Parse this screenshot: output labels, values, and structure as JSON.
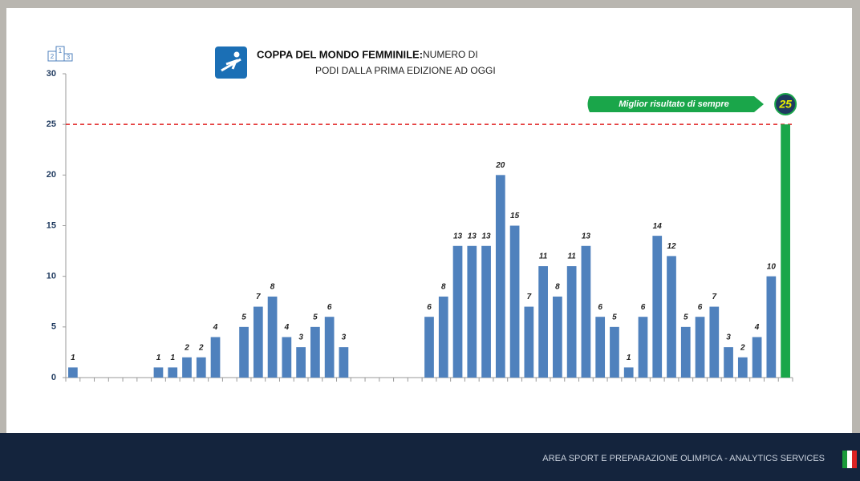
{
  "chart_data": {
    "type": "bar",
    "title": "COPPA DEL MONDO FEMMINILE:",
    "subtitle_line1": "NUMERO DI",
    "subtitle_line2": "PODI DALLA PRIMA EDIZIONE AD OGGI",
    "categories": [
      null,
      null,
      null,
      null,
      null,
      null,
      null,
      null,
      null,
      null,
      null,
      null,
      null,
      null,
      null,
      null,
      null,
      null,
      null,
      null,
      null,
      null,
      null,
      null,
      null,
      null,
      null,
      null,
      null,
      null,
      null,
      null,
      null,
      null,
      null,
      null,
      null,
      null,
      null,
      null,
      null,
      null,
      null,
      null,
      null,
      null,
      null,
      null,
      null,
      null,
      null
    ],
    "values": [
      1,
      null,
      null,
      null,
      null,
      null,
      1,
      1,
      2,
      2,
      4,
      null,
      5,
      7,
      8,
      4,
      3,
      5,
      6,
      3,
      null,
      null,
      null,
      null,
      null,
      6,
      8,
      13,
      13,
      13,
      20,
      15,
      7,
      11,
      8,
      11,
      13,
      6,
      5,
      1,
      6,
      14,
      12,
      5,
      6,
      7,
      3,
      2,
      4,
      10,
      25
    ],
    "color": "#4f81bd",
    "highlight_color": "#1aa64a",
    "ylim": [
      0,
      30
    ],
    "yticks": [
      0,
      5,
      10,
      15,
      20,
      25,
      30
    ],
    "reference_line": {
      "value": 25,
      "color": "#e02020"
    },
    "annotation": "Miglior risultato di sempre",
    "footer": "AREA SPORT E PREPARAZIONE OLIMPICA - ANALYTICS SERVICES"
  }
}
